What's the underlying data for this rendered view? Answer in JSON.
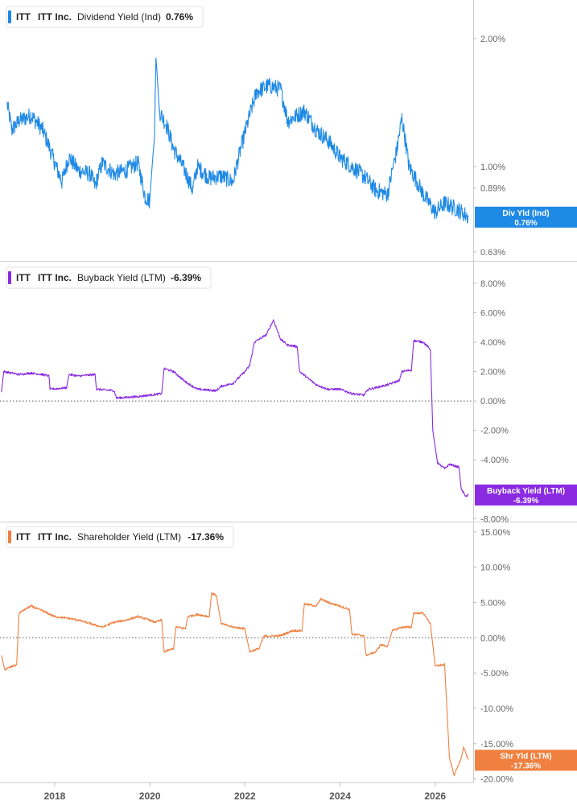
{
  "chart_data": [
    {
      "type": "line",
      "ticker": "ITT",
      "company": "ITT Inc.",
      "metric": "Dividend Yield (Ind)",
      "current": "0.76%",
      "tag": [
        "Div Yld (Ind)",
        "0.76%"
      ],
      "color": "#1f8ae6",
      "scale": "log",
      "ylim": [
        0.6,
        2.4
      ],
      "yticks": [
        {
          "v": 2.0,
          "label": "2.00%"
        },
        {
          "v": 1.0,
          "label": "1.00%"
        },
        {
          "v": 0.89,
          "label": "0.89%"
        },
        {
          "v": 0.63,
          "label": "0.63%"
        }
      ],
      "zero_line": false,
      "points": [
        [
          2017.0,
          1.4
        ],
        [
          2017.1,
          1.22
        ],
        [
          2017.25,
          1.28
        ],
        [
          2017.5,
          1.32
        ],
        [
          2017.75,
          1.22
        ],
        [
          2018.0,
          1.02
        ],
        [
          2018.15,
          0.92
        ],
        [
          2018.3,
          1.05
        ],
        [
          2018.5,
          0.98
        ],
        [
          2018.75,
          0.96
        ],
        [
          2018.85,
          0.9
        ],
        [
          2019.0,
          1.02
        ],
        [
          2019.25,
          0.96
        ],
        [
          2019.5,
          0.98
        ],
        [
          2019.75,
          1.02
        ],
        [
          2019.9,
          0.85
        ],
        [
          2020.0,
          0.83
        ],
        [
          2020.1,
          1.18
        ],
        [
          2020.13,
          1.8
        ],
        [
          2020.2,
          1.35
        ],
        [
          2020.35,
          1.25
        ],
        [
          2020.5,
          1.1
        ],
        [
          2020.75,
          0.97
        ],
        [
          2020.9,
          0.88
        ],
        [
          2021.0,
          1.0
        ],
        [
          2021.25,
          0.94
        ],
        [
          2021.5,
          0.95
        ],
        [
          2021.75,
          0.92
        ],
        [
          2022.0,
          1.2
        ],
        [
          2022.25,
          1.5
        ],
        [
          2022.5,
          1.55
        ],
        [
          2022.75,
          1.52
        ],
        [
          2022.9,
          1.28
        ],
        [
          2023.25,
          1.35
        ],
        [
          2023.5,
          1.22
        ],
        [
          2023.75,
          1.15
        ],
        [
          2024.0,
          1.05
        ],
        [
          2024.25,
          1.0
        ],
        [
          2024.5,
          0.95
        ],
        [
          2024.75,
          0.88
        ],
        [
          2025.0,
          0.86
        ],
        [
          2025.2,
          1.1
        ],
        [
          2025.3,
          1.3
        ],
        [
          2025.45,
          1.0
        ],
        [
          2025.75,
          0.86
        ],
        [
          2026.0,
          0.78
        ],
        [
          2026.2,
          0.82
        ],
        [
          2026.5,
          0.79
        ],
        [
          2026.7,
          0.76
        ]
      ]
    },
    {
      "type": "line",
      "ticker": "ITT",
      "company": "ITT Inc.",
      "metric": "Buyback Yield (LTM)",
      "current": "-6.39%",
      "tag": [
        "Buyback Yield (LTM)",
        "-6.39%"
      ],
      "color": "#8a2be2",
      "scale": "linear",
      "ylim": [
        -8.2,
        9.2
      ],
      "yticks": [
        {
          "v": 8,
          "label": "8.00%"
        },
        {
          "v": 6,
          "label": "6.00%"
        },
        {
          "v": 4,
          "label": "4.00%"
        },
        {
          "v": 2,
          "label": "2.00%"
        },
        {
          "v": 0,
          "label": "0.00%"
        },
        {
          "v": -2,
          "label": "-2.00%"
        },
        {
          "v": -4,
          "label": "-4.00%"
        },
        {
          "v": -8,
          "label": "-8.00%"
        }
      ],
      "zero_line": true,
      "points": [
        [
          2016.88,
          0.6
        ],
        [
          2016.93,
          2.0
        ],
        [
          2017.25,
          1.8
        ],
        [
          2017.5,
          1.9
        ],
        [
          2017.75,
          1.8
        ],
        [
          2017.88,
          1.7
        ],
        [
          2017.9,
          0.8
        ],
        [
          2018.25,
          0.9
        ],
        [
          2018.3,
          1.8
        ],
        [
          2018.5,
          1.7
        ],
        [
          2018.85,
          1.8
        ],
        [
          2018.88,
          0.8
        ],
        [
          2019.25,
          0.7
        ],
        [
          2019.3,
          0.2
        ],
        [
          2019.75,
          0.3
        ],
        [
          2020.25,
          0.5
        ],
        [
          2020.3,
          2.2
        ],
        [
          2020.5,
          2.0
        ],
        [
          2020.75,
          1.3
        ],
        [
          2021.0,
          0.8
        ],
        [
          2021.4,
          0.7
        ],
        [
          2021.5,
          1.0
        ],
        [
          2021.75,
          1.2
        ],
        [
          2022.0,
          2.0
        ],
        [
          2022.1,
          2.4
        ],
        [
          2022.2,
          4.0
        ],
        [
          2022.45,
          4.5
        ],
        [
          2022.6,
          5.5
        ],
        [
          2022.75,
          4.2
        ],
        [
          2022.9,
          3.8
        ],
        [
          2023.1,
          3.7
        ],
        [
          2023.15,
          2.0
        ],
        [
          2023.5,
          1.1
        ],
        [
          2023.75,
          0.8
        ],
        [
          2024.0,
          0.8
        ],
        [
          2024.25,
          0.5
        ],
        [
          2024.5,
          0.4
        ],
        [
          2024.6,
          0.8
        ],
        [
          2024.75,
          0.9
        ],
        [
          2025.0,
          1.1
        ],
        [
          2025.25,
          1.4
        ],
        [
          2025.3,
          2.0
        ],
        [
          2025.5,
          2.1
        ],
        [
          2025.55,
          4.1
        ],
        [
          2025.75,
          4.0
        ],
        [
          2025.9,
          3.5
        ],
        [
          2025.95,
          -2.0
        ],
        [
          2026.05,
          -4.2
        ],
        [
          2026.2,
          -4.6
        ],
        [
          2026.3,
          -4.3
        ],
        [
          2026.5,
          -4.5
        ],
        [
          2026.55,
          -6.0
        ],
        [
          2026.65,
          -6.5
        ],
        [
          2026.7,
          -6.39
        ]
      ]
    },
    {
      "type": "line",
      "ticker": "ITT",
      "company": "ITT Inc.",
      "metric": "Shareholder Yield (LTM)",
      "current": "-17.36%",
      "tag": [
        "Shr Yld (LTM)",
        "-17.36%"
      ],
      "color": "#f08040",
      "scale": "linear",
      "ylim": [
        -20.5,
        16.0
      ],
      "yticks": [
        {
          "v": 15,
          "label": "15.00%"
        },
        {
          "v": 10,
          "label": "10.00%"
        },
        {
          "v": 5,
          "label": "5.00%"
        },
        {
          "v": 0,
          "label": "0.00%"
        },
        {
          "v": -5,
          "label": "-5.00%"
        },
        {
          "v": -10,
          "label": "-10.00%"
        },
        {
          "v": -15,
          "label": "-15.00%"
        },
        {
          "v": -20,
          "label": "-20.00%"
        }
      ],
      "zero_line": true,
      "points": [
        [
          2016.88,
          -2.5
        ],
        [
          2016.95,
          -4.5
        ],
        [
          2017.2,
          -3.8
        ],
        [
          2017.25,
          3.5
        ],
        [
          2017.5,
          4.5
        ],
        [
          2017.75,
          3.8
        ],
        [
          2018.0,
          3.0
        ],
        [
          2018.25,
          2.8
        ],
        [
          2018.5,
          2.5
        ],
        [
          2018.75,
          2.0
        ],
        [
          2019.0,
          1.5
        ],
        [
          2019.25,
          2.2
        ],
        [
          2019.5,
          2.5
        ],
        [
          2019.75,
          3.0
        ],
        [
          2020.0,
          2.5
        ],
        [
          2020.1,
          2.2
        ],
        [
          2020.25,
          2.5
        ],
        [
          2020.3,
          -2.0
        ],
        [
          2020.5,
          -1.5
        ],
        [
          2020.55,
          1.5
        ],
        [
          2020.75,
          1.3
        ],
        [
          2020.8,
          3.0
        ],
        [
          2021.0,
          3.3
        ],
        [
          2021.25,
          3.0
        ],
        [
          2021.3,
          6.3
        ],
        [
          2021.4,
          6.0
        ],
        [
          2021.5,
          2.0
        ],
        [
          2021.75,
          1.5
        ],
        [
          2022.0,
          1.3
        ],
        [
          2022.1,
          -2.0
        ],
        [
          2022.3,
          -1.5
        ],
        [
          2022.4,
          0.2
        ],
        [
          2022.75,
          0.3
        ],
        [
          2023.0,
          1.0
        ],
        [
          2023.2,
          1.0
        ],
        [
          2023.25,
          4.8
        ],
        [
          2023.5,
          4.5
        ],
        [
          2023.6,
          5.5
        ],
        [
          2023.75,
          5.0
        ],
        [
          2024.0,
          4.5
        ],
        [
          2024.2,
          4.0
        ],
        [
          2024.25,
          0.5
        ],
        [
          2024.5,
          0.3
        ],
        [
          2024.55,
          -2.5
        ],
        [
          2024.75,
          -2.0
        ],
        [
          2024.85,
          -1.0
        ],
        [
          2025.0,
          -1.2
        ],
        [
          2025.1,
          1.0
        ],
        [
          2025.3,
          1.5
        ],
        [
          2025.5,
          1.5
        ],
        [
          2025.55,
          3.5
        ],
        [
          2025.75,
          3.5
        ],
        [
          2025.9,
          2.0
        ],
        [
          2026.0,
          -4.0
        ],
        [
          2026.2,
          -3.8
        ],
        [
          2026.3,
          -17.0
        ],
        [
          2026.4,
          -19.5
        ],
        [
          2026.55,
          -17.0
        ],
        [
          2026.6,
          -15.5
        ],
        [
          2026.7,
          -17.36
        ]
      ]
    }
  ],
  "x_axis": {
    "xlim": [
      2016.85,
      2026.8
    ],
    "ticks": [
      {
        "v": 2018,
        "label": "2018"
      },
      {
        "v": 2020,
        "label": "2020"
      },
      {
        "v": 2022,
        "label": "2022"
      },
      {
        "v": 2024,
        "label": "2024"
      },
      {
        "v": 2026,
        "label": "2026"
      }
    ]
  },
  "partial_label": "0.7"
}
